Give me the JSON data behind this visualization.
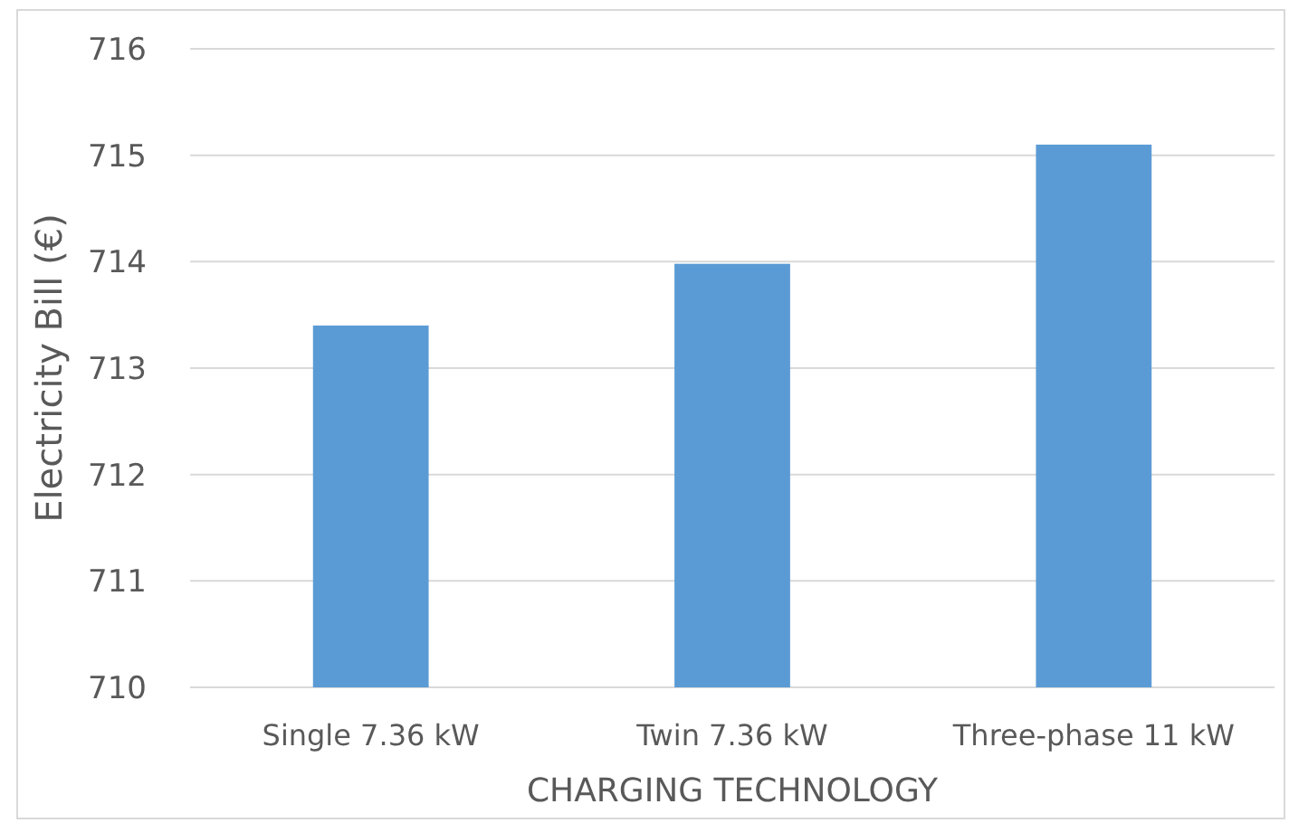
{
  "chart_data": {
    "type": "bar",
    "xlabel": "CHARGING TECHNOLOGY",
    "ylabel": "Electricity Bill (€)",
    "categories": [
      "Single 7.36 kW",
      "Twin 7.36 kW",
      "Three-phase 11 kW"
    ],
    "values": [
      713.4,
      713.98,
      715.1
    ],
    "color": "#5b9bd5",
    "ylim": [
      710,
      716
    ],
    "yticks": [
      710,
      711,
      712,
      713,
      714,
      715,
      716
    ],
    "grid": "y"
  }
}
